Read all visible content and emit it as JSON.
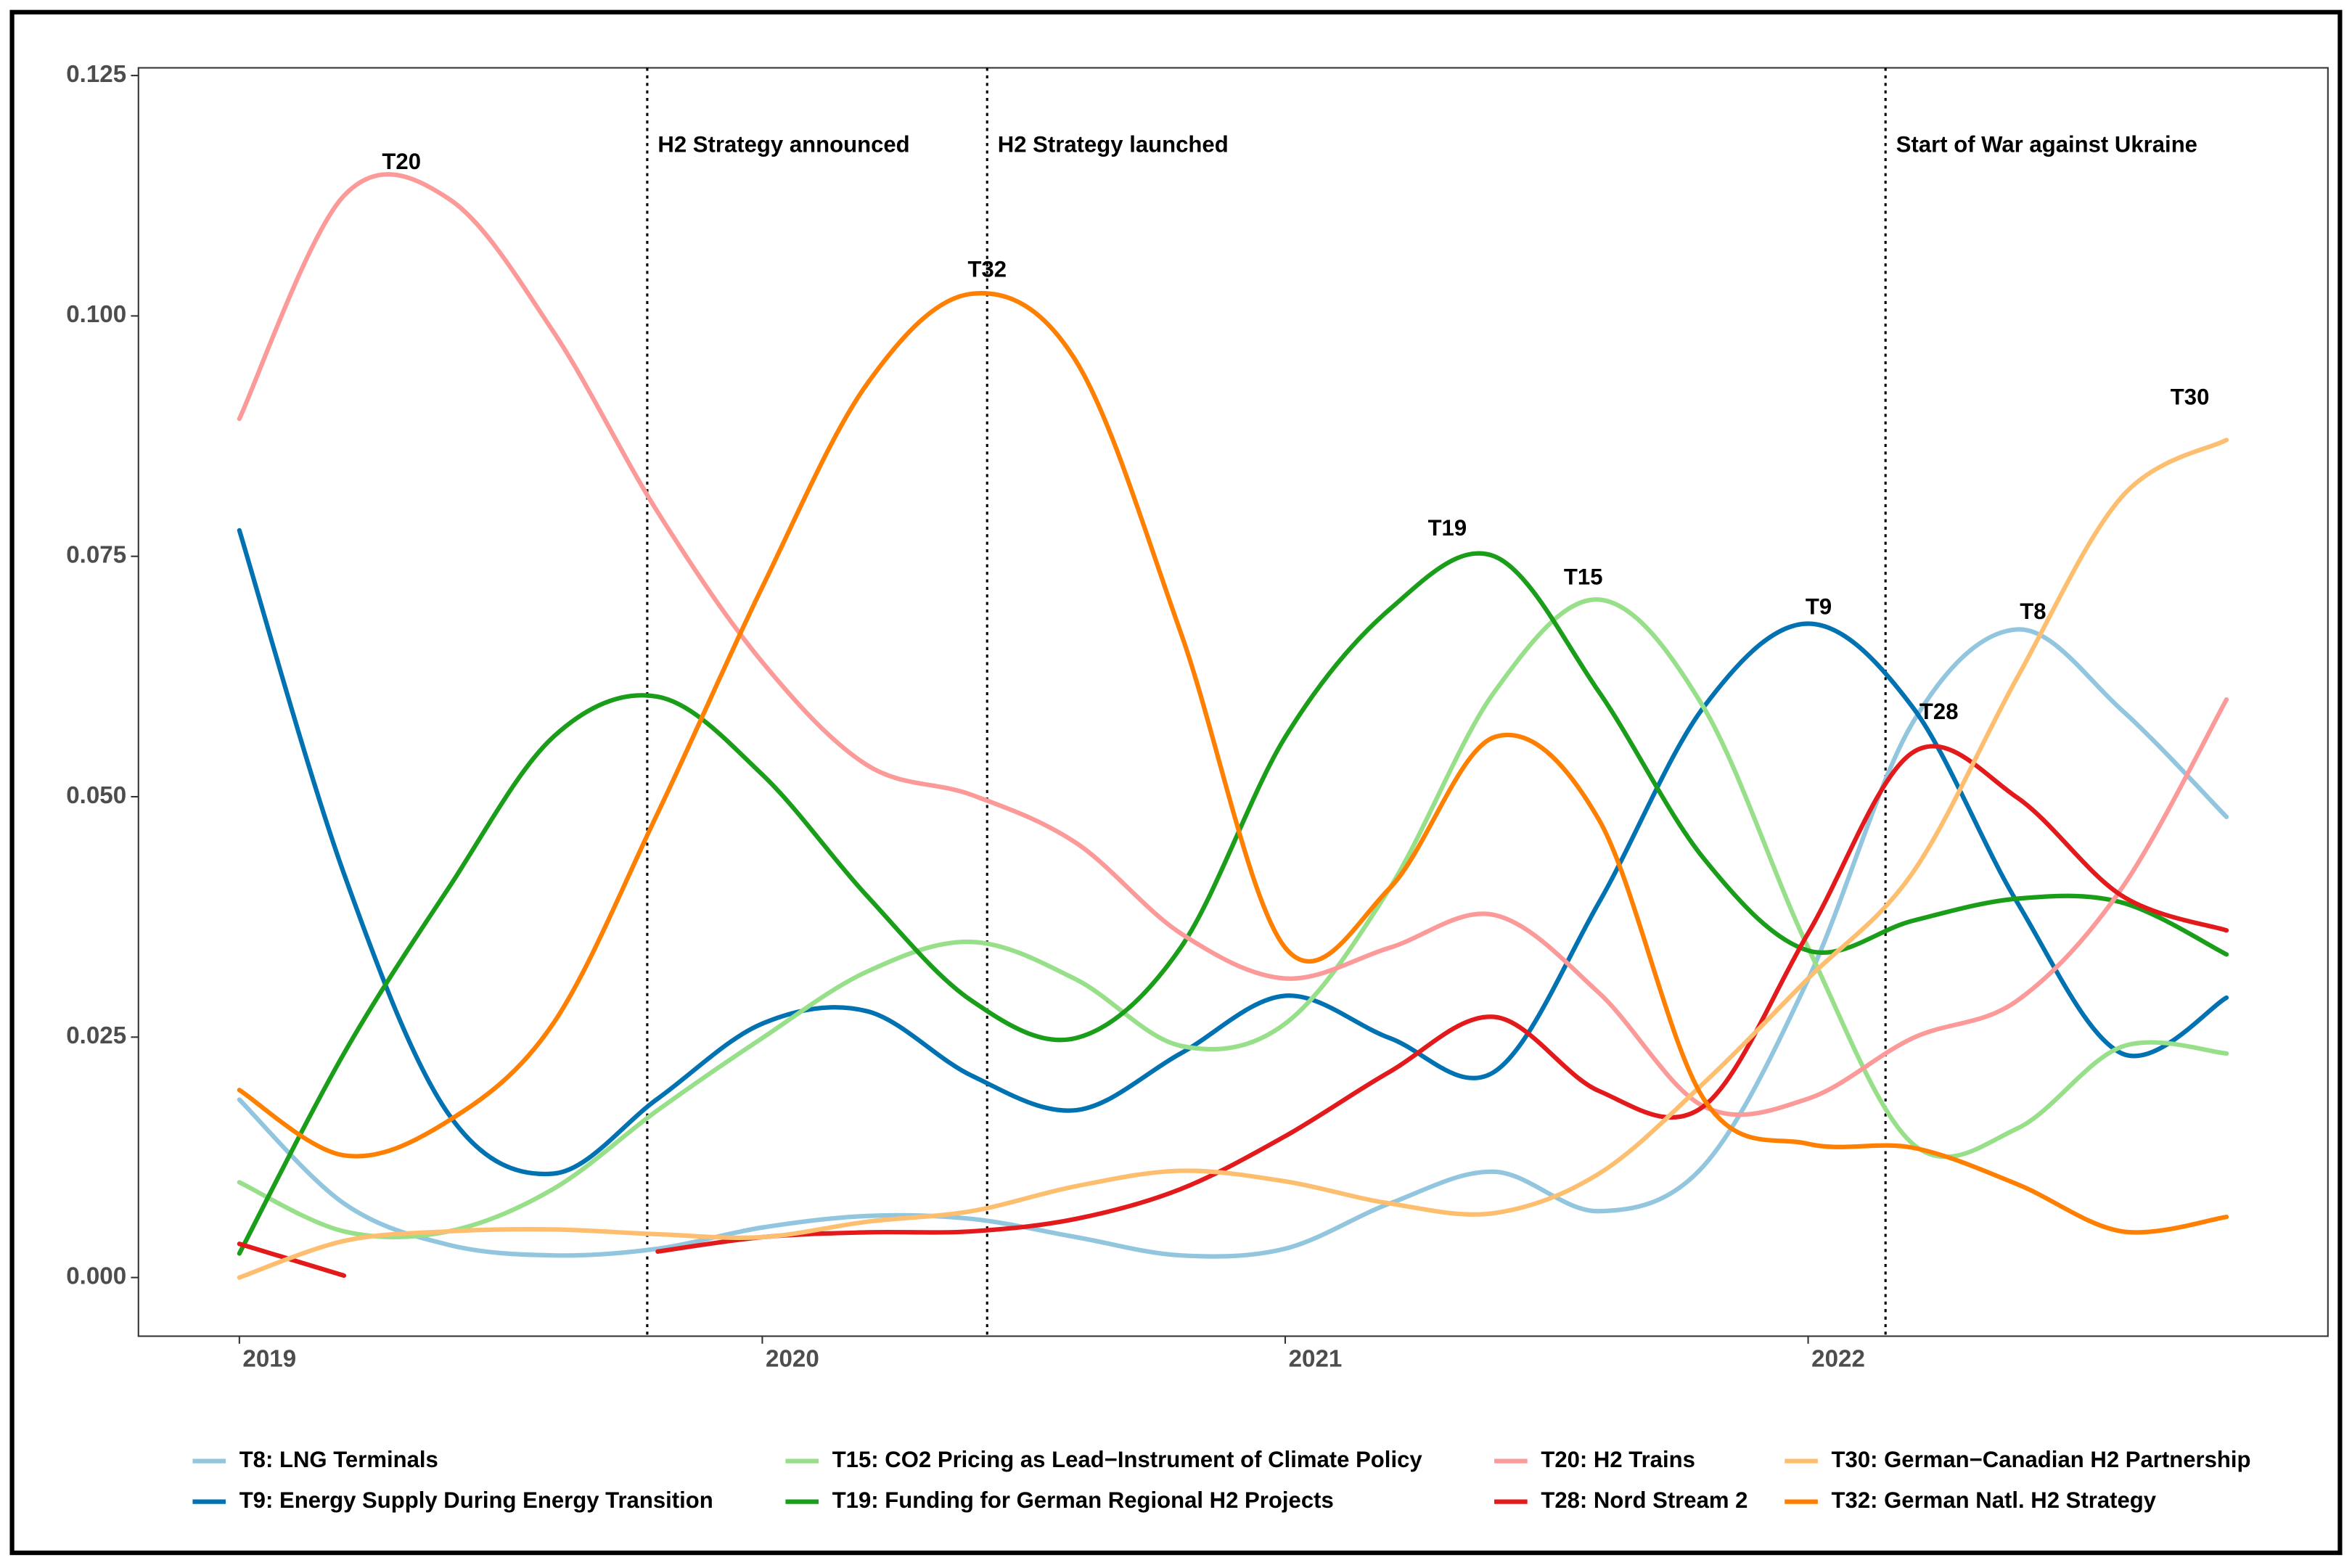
{
  "chart_data": {
    "type": "line",
    "x": [
      2019.0,
      2019.2,
      2019.4,
      2019.6,
      2019.8,
      2020.0,
      2020.2,
      2020.4,
      2020.6,
      2020.8,
      2021.0,
      2021.2,
      2021.4,
      2021.6,
      2021.8,
      2022.0,
      2022.2,
      2022.4,
      2022.6,
      2022.8
    ],
    "xlim": [
      2018.807,
      2022.994
    ],
    "xticks": [
      2019,
      2020,
      2021,
      2022
    ],
    "ylim": [
      -0.0061,
      0.1258
    ],
    "yticks": [
      {
        "value": 0,
        "label": "0.000"
      },
      {
        "value": 0.025,
        "label": "0.025"
      },
      {
        "value": 0.05,
        "label": "0.050"
      },
      {
        "value": 0.075,
        "label": "0.075"
      },
      {
        "value": 0.1,
        "label": "0.100"
      },
      {
        "value": 0.125,
        "label": "0.125"
      }
    ],
    "grid": false,
    "legend": "bottom",
    "series": [
      {
        "name": "T8: LNG Terminals",
        "color": "#92c5de",
        "values": [
          0.0185,
          0.0077,
          0.0034,
          0.0023,
          0.003,
          0.0052,
          0.0064,
          0.0061,
          0.0042,
          0.0023,
          0.003,
          0.0077,
          0.011,
          0.0069,
          0.0116,
          0.031,
          0.0577,
          0.0674,
          0.059,
          0.0479
        ]
      },
      {
        "name": "T9: Energy Supply During Energy Transition",
        "color": "#0072b2",
        "values": [
          0.0777,
          0.042,
          0.017,
          0.0108,
          0.0186,
          0.0264,
          0.0277,
          0.021,
          0.0174,
          0.0233,
          0.0293,
          0.0249,
          0.0214,
          0.039,
          0.0593,
          0.068,
          0.0593,
          0.039,
          0.0233,
          0.0291
        ]
      },
      {
        "name": "T15: CO2 Pricing as Lead−Instrument of Climate Policy",
        "color": "#98df8a",
        "values": [
          0.0099,
          0.0048,
          0.0048,
          0.0092,
          0.0174,
          0.0249,
          0.0318,
          0.0349,
          0.031,
          0.0241,
          0.0264,
          0.0405,
          0.0609,
          0.0705,
          0.0593,
          0.0343,
          0.0139,
          0.0155,
          0.024,
          0.0233
        ]
      },
      {
        "name": "T19: Funding for German Regional H2 Projects",
        "color": "#1a9e1a",
        "values": [
          0.0025,
          0.0233,
          0.0405,
          0.0562,
          0.0604,
          0.0523,
          0.0397,
          0.0288,
          0.0249,
          0.0343,
          0.0562,
          0.0695,
          0.075,
          0.0609,
          0.0436,
          0.034,
          0.0371,
          0.0394,
          0.039,
          0.0336
        ]
      },
      {
        "name": "T20: H2 Trains",
        "color": "#fb9a99",
        "values": [
          0.0893,
          0.1125,
          0.1122,
          0.0984,
          0.0796,
          0.064,
          0.0533,
          0.0502,
          0.0452,
          0.0358,
          0.0311,
          0.0343,
          0.0377,
          0.0296,
          0.0178,
          0.0186,
          0.0249,
          0.0288,
          0.0405,
          0.0601
        ]
      },
      {
        "name": "T28: Nord Stream 2",
        "color": "#e31a1c",
        "values": [
          0.0035,
          0.0002,
          null,
          null,
          0.0027,
          0.0042,
          0.0047,
          0.0048,
          0.0061,
          0.0092,
          0.0147,
          0.0214,
          0.0271,
          0.0194,
          0.0178,
          0.0358,
          0.0546,
          0.0499,
          0.0397,
          0.0361
        ]
      },
      {
        "name": "T30: German−Canadian H2 Partnership",
        "color": "#fdbf6f",
        "values": [
          0.0,
          0.0038,
          0.0048,
          0.005,
          0.0045,
          0.0042,
          0.0058,
          0.0069,
          0.0095,
          0.0111,
          0.01,
          0.0077,
          0.0067,
          0.0108,
          0.0202,
          0.0311,
          0.0421,
          0.0624,
          0.0812,
          0.0871
        ]
      },
      {
        "name": "T32: German Natl. H2 Strategy",
        "color": "#ff7f00",
        "values": [
          0.0195,
          0.0127,
          0.0163,
          0.0264,
          0.0483,
          0.0718,
          0.0929,
          0.1023,
          0.0953,
          0.0671,
          0.0343,
          0.0405,
          0.0562,
          0.0476,
          0.0186,
          0.0139,
          0.0135,
          0.0097,
          0.0048,
          0.0063
        ]
      }
    ],
    "events": [
      {
        "x": 2019.78,
        "label": "H2 Strategy announced"
      },
      {
        "x": 2020.43,
        "label": "H2 Strategy launched"
      },
      {
        "x": 2022.148,
        "label": "Start of War against Ukraine"
      }
    ],
    "peak_labels": [
      {
        "text": "T20",
        "x": 2019.31,
        "y": 0.1159
      },
      {
        "text": "T32",
        "x": 2020.43,
        "y": 0.1047
      },
      {
        "text": "T19",
        "x": 2021.31,
        "y": 0.0778
      },
      {
        "text": "T15",
        "x": 2021.57,
        "y": 0.0727
      },
      {
        "text": "T9",
        "x": 2022.02,
        "y": 0.0696
      },
      {
        "text": "T8",
        "x": 2022.43,
        "y": 0.0691
      },
      {
        "text": "T28",
        "x": 2022.25,
        "y": 0.0587
      },
      {
        "text": "T30",
        "x": 2022.73,
        "y": 0.0914
      }
    ]
  }
}
